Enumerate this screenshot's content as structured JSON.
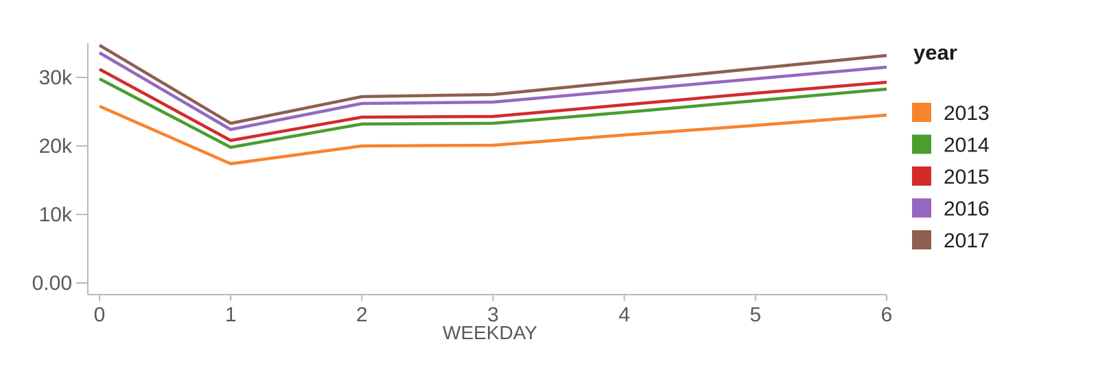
{
  "chart_data": {
    "type": "line",
    "title": "",
    "xlabel": "WEEKDAY",
    "ylabel": "",
    "x": [
      0,
      1,
      2,
      3,
      4,
      5,
      6
    ],
    "x_tick_labels": [
      "0",
      "1",
      "2",
      "3",
      "4",
      "5",
      "6"
    ],
    "y_tick_values": [
      0,
      10000,
      20000,
      30000
    ],
    "y_tick_labels": [
      "0.00",
      "10k",
      "20k",
      "30k"
    ],
    "xlim": [
      0,
      6
    ],
    "ylim": [
      0,
      35000
    ],
    "grid": false,
    "legend": {
      "title": "year",
      "position": "right"
    },
    "series": [
      {
        "name": "2013",
        "color": "#F9832D",
        "values": [
          25800,
          17400,
          20000,
          20100,
          21600,
          23000,
          24500
        ]
      },
      {
        "name": "2014",
        "color": "#4A9D2F",
        "values": [
          29800,
          19800,
          23200,
          23300,
          24900,
          26600,
          28300
        ]
      },
      {
        "name": "2015",
        "color": "#D32B2B",
        "values": [
          31200,
          20800,
          24200,
          24300,
          26000,
          27700,
          29300
        ]
      },
      {
        "name": "2016",
        "color": "#9468C1",
        "values": [
          33600,
          22400,
          26200,
          26400,
          28100,
          29800,
          31500
        ]
      },
      {
        "name": "2017",
        "color": "#8D5F51",
        "values": [
          34700,
          23300,
          27200,
          27500,
          29400,
          31300,
          33200
        ]
      }
    ],
    "style": {
      "axis_color": "#b9b9b9",
      "tick_label_color": "#595959",
      "axis_title_color": "#595959",
      "legend_title_color": "#1c1c1c",
      "legend_label_color": "#212121",
      "background": "#ffffff"
    }
  }
}
